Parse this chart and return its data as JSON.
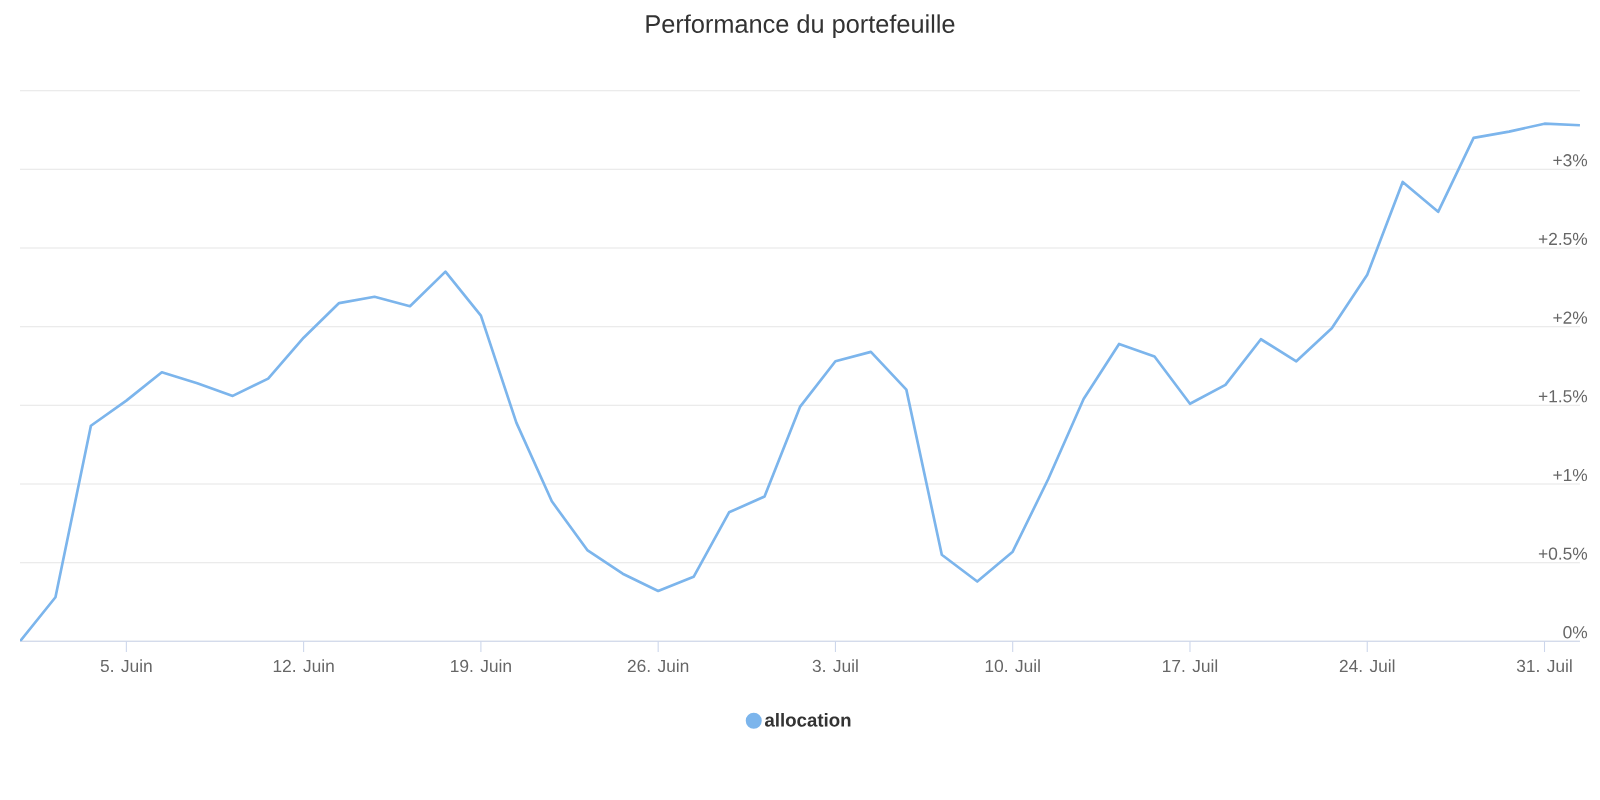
{
  "chart_data": {
    "type": "line",
    "title": "Performance du portefeuille",
    "categories": [
      null,
      null,
      null,
      "5. Juin",
      null,
      null,
      null,
      null,
      "12. Juin",
      null,
      null,
      null,
      null,
      "19. Juin",
      null,
      null,
      null,
      null,
      "26. Juin",
      null,
      null,
      null,
      null,
      "3. Juil",
      null,
      null,
      null,
      null,
      "10. Juil",
      null,
      null,
      null,
      null,
      "17. Juil",
      null,
      null,
      null,
      null,
      "24. Juil",
      null,
      null,
      null,
      null,
      "31. Juil",
      null
    ],
    "series": [
      {
        "name": "allocation",
        "color": "#7cb5ec",
        "values": [
          0,
          0.28,
          1.37,
          1.53,
          1.71,
          1.64,
          1.56,
          1.67,
          1.93,
          2.15,
          2.19,
          2.13,
          2.35,
          2.07,
          1.39,
          0.89,
          0.58,
          0.43,
          0.32,
          0.41,
          0.82,
          0.92,
          1.49,
          1.78,
          1.84,
          1.6,
          0.55,
          0.38,
          0.57,
          1.03,
          1.54,
          1.89,
          1.81,
          1.51,
          1.63,
          1.92,
          1.78,
          1.99,
          2.33,
          2.92,
          2.73,
          3.2,
          3.24,
          3.29,
          3.28
        ]
      }
    ],
    "ylim": [
      0,
      3.5
    ],
    "yticks": [
      {
        "value": 0,
        "label": "0%"
      },
      {
        "value": 0.5,
        "label": "+0.5%"
      },
      {
        "value": 1,
        "label": "+1%"
      },
      {
        "value": 1.5,
        "label": "+1.5%"
      },
      {
        "value": 2,
        "label": "+2%"
      },
      {
        "value": 2.5,
        "label": "+2.5%"
      },
      {
        "value": 3,
        "label": "+3%"
      },
      {
        "value": 3.5,
        "label": null
      }
    ],
    "grid": "y",
    "legend": "bottom",
    "marker": "none",
    "line_style": "solid"
  }
}
